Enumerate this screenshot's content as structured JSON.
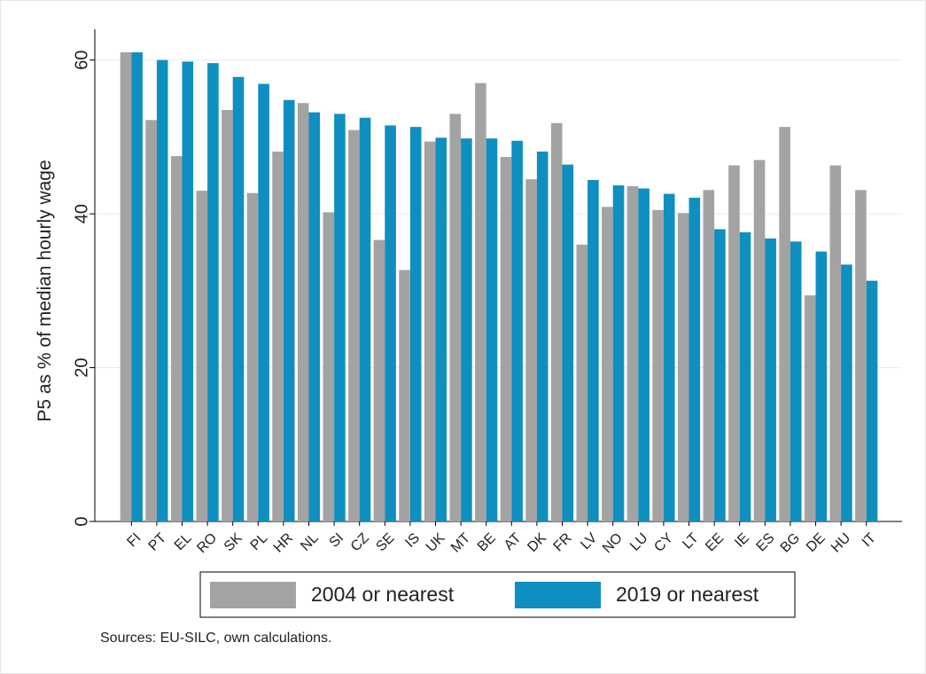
{
  "chart_data": {
    "type": "bar",
    "ylabel": "P5 as % of median hourly wage",
    "note": "Sources: EU-SILC, own calculations.",
    "categories": [
      "FI",
      "PT",
      "EL",
      "RO",
      "SK",
      "PL",
      "HR",
      "NL",
      "SI",
      "CZ",
      "SE",
      "IS",
      "UK",
      "MT",
      "BE",
      "AT",
      "DK",
      "FR",
      "LV",
      "NO",
      "LU",
      "CY",
      "LT",
      "EE",
      "IE",
      "ES",
      "BG",
      "DE",
      "HU",
      "IT"
    ],
    "series": [
      {
        "name": "2004 or nearest",
        "color": "#a3a3a3",
        "values": [
          61,
          52.2,
          47.5,
          43,
          53.5,
          42.7,
          48.1,
          54.4,
          40.2,
          50.9,
          36.6,
          32.7,
          49.4,
          53,
          57,
          47.4,
          44.5,
          51.8,
          36,
          40.9,
          43.6,
          40.5,
          40.1,
          43.1,
          46.3,
          47,
          51.3,
          29.4,
          46.3,
          43.1
        ]
      },
      {
        "name": "2019 or nearest",
        "color": "#0f8fc0",
        "values": [
          61,
          60,
          59.8,
          59.6,
          57.8,
          56.9,
          54.8,
          53.2,
          53,
          52.5,
          51.5,
          51.3,
          49.9,
          49.8,
          49.8,
          49.5,
          48.1,
          46.4,
          44.4,
          43.7,
          43.3,
          42.6,
          42.1,
          38,
          37.6,
          36.8,
          36.4,
          35.1,
          33.4,
          31.3
        ]
      }
    ],
    "ylim": [
      0,
      64
    ],
    "yticks": [
      0,
      20,
      40,
      60
    ],
    "grid": true
  }
}
